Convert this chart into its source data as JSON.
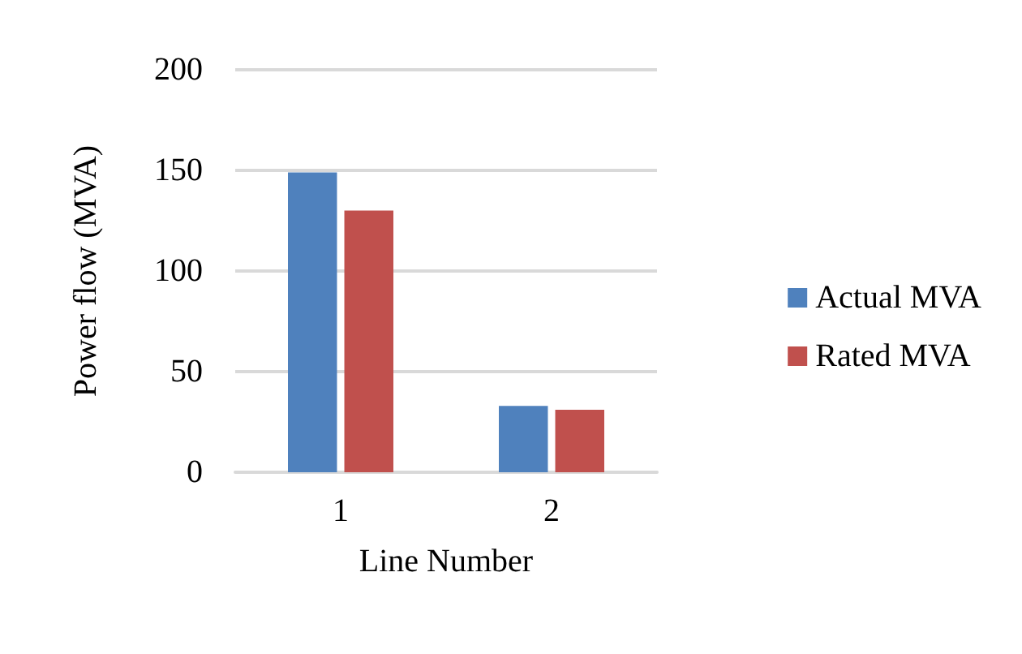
{
  "chart_data": {
    "type": "bar",
    "xlabel": "Line Number",
    "ylabel": "Power flow (MVA)",
    "categories": [
      "1",
      "2"
    ],
    "series": [
      {
        "name": "Actual MVA",
        "color": "#4f81bd",
        "values": [
          149,
          33
        ]
      },
      {
        "name": "Rated MVA",
        "color": "#c0504d",
        "values": [
          130,
          31
        ]
      }
    ],
    "ylim": [
      0,
      200
    ],
    "yticks": [
      0,
      50,
      100,
      150,
      200
    ],
    "grid": "y",
    "legend": "right"
  }
}
